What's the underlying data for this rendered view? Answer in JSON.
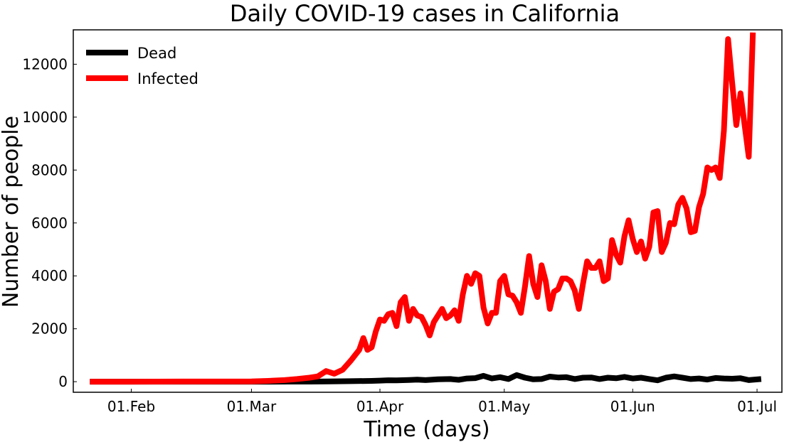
{
  "chart_data": {
    "type": "line",
    "title": "Daily COVID-19 cases in California",
    "xlabel": "Time (days)",
    "ylabel": "Number of people",
    "x_tick_labels": [
      "01.Feb",
      "01.Mar",
      "01.Apr",
      "01.May",
      "01.Jun",
      "01.Jul"
    ],
    "x_tick_dates": [
      "2020-02-01",
      "2020-03-01",
      "2020-04-01",
      "2020-05-01",
      "2020-06-01",
      "2020-07-01"
    ],
    "xlim": [
      "2020-01-18",
      "2020-07-07"
    ],
    "y_tick_labels": [
      "0",
      "2000",
      "4000",
      "6000",
      "8000",
      "10000",
      "12000"
    ],
    "y_ticks": [
      0,
      2000,
      4000,
      6000,
      8000,
      10000,
      12000
    ],
    "ylim": [
      -400,
      13300
    ],
    "grid": false,
    "legend_position": "top-left",
    "series": [
      {
        "name": "Dead",
        "color": "#000000",
        "points": [
          [
            "2020-01-22",
            0
          ],
          [
            "2020-02-01",
            0
          ],
          [
            "2020-02-15",
            0
          ],
          [
            "2020-03-01",
            0
          ],
          [
            "2020-03-05",
            1
          ],
          [
            "2020-03-10",
            2
          ],
          [
            "2020-03-15",
            4
          ],
          [
            "2020-03-20",
            10
          ],
          [
            "2020-03-25",
            20
          ],
          [
            "2020-03-30",
            30
          ],
          [
            "2020-04-01",
            40
          ],
          [
            "2020-04-03",
            55
          ],
          [
            "2020-04-05",
            50
          ],
          [
            "2020-04-08",
            65
          ],
          [
            "2020-04-10",
            75
          ],
          [
            "2020-04-12",
            60
          ],
          [
            "2020-04-15",
            90
          ],
          [
            "2020-04-18",
            100
          ],
          [
            "2020-04-20",
            70
          ],
          [
            "2020-04-22",
            120
          ],
          [
            "2020-04-24",
            135
          ],
          [
            "2020-04-26",
            220
          ],
          [
            "2020-04-28",
            120
          ],
          [
            "2020-04-30",
            170
          ],
          [
            "2020-05-02",
            100
          ],
          [
            "2020-05-04",
            250
          ],
          [
            "2020-05-06",
            150
          ],
          [
            "2020-05-08",
            90
          ],
          [
            "2020-05-10",
            100
          ],
          [
            "2020-05-12",
            190
          ],
          [
            "2020-05-14",
            160
          ],
          [
            "2020-05-16",
            170
          ],
          [
            "2020-05-18",
            100
          ],
          [
            "2020-05-20",
            150
          ],
          [
            "2020-05-22",
            160
          ],
          [
            "2020-05-24",
            100
          ],
          [
            "2020-05-26",
            150
          ],
          [
            "2020-05-28",
            130
          ],
          [
            "2020-05-30",
            180
          ],
          [
            "2020-06-01",
            120
          ],
          [
            "2020-06-03",
            150
          ],
          [
            "2020-06-05",
            100
          ],
          [
            "2020-06-07",
            50
          ],
          [
            "2020-06-09",
            150
          ],
          [
            "2020-06-11",
            200
          ],
          [
            "2020-06-13",
            150
          ],
          [
            "2020-06-15",
            100
          ],
          [
            "2020-06-17",
            120
          ],
          [
            "2020-06-19",
            80
          ],
          [
            "2020-06-21",
            140
          ],
          [
            "2020-06-23",
            120
          ],
          [
            "2020-06-25",
            110
          ],
          [
            "2020-06-27",
            130
          ],
          [
            "2020-06-29",
            60
          ],
          [
            "2020-07-02",
            100
          ]
        ]
      },
      {
        "name": "Infected",
        "color": "#ff0000",
        "points": [
          [
            "2020-01-22",
            0
          ],
          [
            "2020-02-01",
            0
          ],
          [
            "2020-02-15",
            5
          ],
          [
            "2020-03-01",
            10
          ],
          [
            "2020-03-05",
            30
          ],
          [
            "2020-03-09",
            60
          ],
          [
            "2020-03-12",
            100
          ],
          [
            "2020-03-15",
            150
          ],
          [
            "2020-03-17",
            200
          ],
          [
            "2020-03-19",
            400
          ],
          [
            "2020-03-21",
            300
          ],
          [
            "2020-03-23",
            450
          ],
          [
            "2020-03-25",
            800
          ],
          [
            "2020-03-27",
            1200
          ],
          [
            "2020-03-28",
            1650
          ],
          [
            "2020-03-29",
            1200
          ],
          [
            "2020-03-30",
            1300
          ],
          [
            "2020-03-31",
            1900
          ],
          [
            "2020-04-01",
            2350
          ],
          [
            "2020-04-02",
            2300
          ],
          [
            "2020-04-03",
            2550
          ],
          [
            "2020-04-04",
            2600
          ],
          [
            "2020-04-05",
            2100
          ],
          [
            "2020-04-06",
            3000
          ],
          [
            "2020-04-07",
            3200
          ],
          [
            "2020-04-08",
            2300
          ],
          [
            "2020-04-09",
            2750
          ],
          [
            "2020-04-10",
            2500
          ],
          [
            "2020-04-11",
            2450
          ],
          [
            "2020-04-12",
            2150
          ],
          [
            "2020-04-13",
            1750
          ],
          [
            "2020-04-14",
            2250
          ],
          [
            "2020-04-15",
            2500
          ],
          [
            "2020-04-16",
            2750
          ],
          [
            "2020-04-17",
            2400
          ],
          [
            "2020-04-18",
            2500
          ],
          [
            "2020-04-19",
            2700
          ],
          [
            "2020-04-20",
            2300
          ],
          [
            "2020-04-21",
            3300
          ],
          [
            "2020-04-22",
            4000
          ],
          [
            "2020-04-23",
            3700
          ],
          [
            "2020-04-24",
            4100
          ],
          [
            "2020-04-25",
            4000
          ],
          [
            "2020-04-26",
            2800
          ],
          [
            "2020-04-27",
            2200
          ],
          [
            "2020-04-28",
            2600
          ],
          [
            "2020-04-29",
            2600
          ],
          [
            "2020-04-30",
            3800
          ],
          [
            "2020-05-01",
            4000
          ],
          [
            "2020-05-02",
            3300
          ],
          [
            "2020-05-03",
            3250
          ],
          [
            "2020-05-04",
            3000
          ],
          [
            "2020-05-05",
            2600
          ],
          [
            "2020-05-06",
            3600
          ],
          [
            "2020-05-07",
            4750
          ],
          [
            "2020-05-08",
            3700
          ],
          [
            "2020-05-09",
            3200
          ],
          [
            "2020-05-10",
            4400
          ],
          [
            "2020-05-11",
            3800
          ],
          [
            "2020-05-12",
            2750
          ],
          [
            "2020-05-13",
            3400
          ],
          [
            "2020-05-14",
            3500
          ],
          [
            "2020-05-15",
            3900
          ],
          [
            "2020-05-16",
            3900
          ],
          [
            "2020-05-17",
            3800
          ],
          [
            "2020-05-18",
            3450
          ],
          [
            "2020-05-19",
            2750
          ],
          [
            "2020-05-20",
            3700
          ],
          [
            "2020-05-21",
            4550
          ],
          [
            "2020-05-22",
            4300
          ],
          [
            "2020-05-23",
            4300
          ],
          [
            "2020-05-24",
            4550
          ],
          [
            "2020-05-25",
            3800
          ],
          [
            "2020-05-26",
            3900
          ],
          [
            "2020-05-27",
            5350
          ],
          [
            "2020-05-28",
            4800
          ],
          [
            "2020-05-29",
            4500
          ],
          [
            "2020-05-30",
            5500
          ],
          [
            "2020-05-31",
            6100
          ],
          [
            "2020-06-01",
            5400
          ],
          [
            "2020-06-02",
            4900
          ],
          [
            "2020-06-03",
            5300
          ],
          [
            "2020-06-04",
            4650
          ],
          [
            "2020-06-05",
            5100
          ],
          [
            "2020-06-06",
            6400
          ],
          [
            "2020-06-07",
            6450
          ],
          [
            "2020-06-08",
            4900
          ],
          [
            "2020-06-09",
            5250
          ],
          [
            "2020-06-10",
            6000
          ],
          [
            "2020-06-11",
            5950
          ],
          [
            "2020-06-12",
            6700
          ],
          [
            "2020-06-13",
            6950
          ],
          [
            "2020-06-14",
            6550
          ],
          [
            "2020-06-15",
            5650
          ],
          [
            "2020-06-16",
            5700
          ],
          [
            "2020-06-17",
            6600
          ],
          [
            "2020-06-18",
            7100
          ],
          [
            "2020-06-19",
            8100
          ],
          [
            "2020-06-20",
            8000
          ],
          [
            "2020-06-21",
            8100
          ],
          [
            "2020-06-22",
            7700
          ],
          [
            "2020-06-23",
            9500
          ],
          [
            "2020-06-24",
            12950
          ],
          [
            "2020-06-25",
            11300
          ],
          [
            "2020-06-26",
            9700
          ],
          [
            "2020-06-27",
            10900
          ],
          [
            "2020-06-28",
            9700
          ],
          [
            "2020-06-29",
            8500
          ],
          [
            "2020-06-30",
            13200
          ]
        ]
      }
    ]
  }
}
